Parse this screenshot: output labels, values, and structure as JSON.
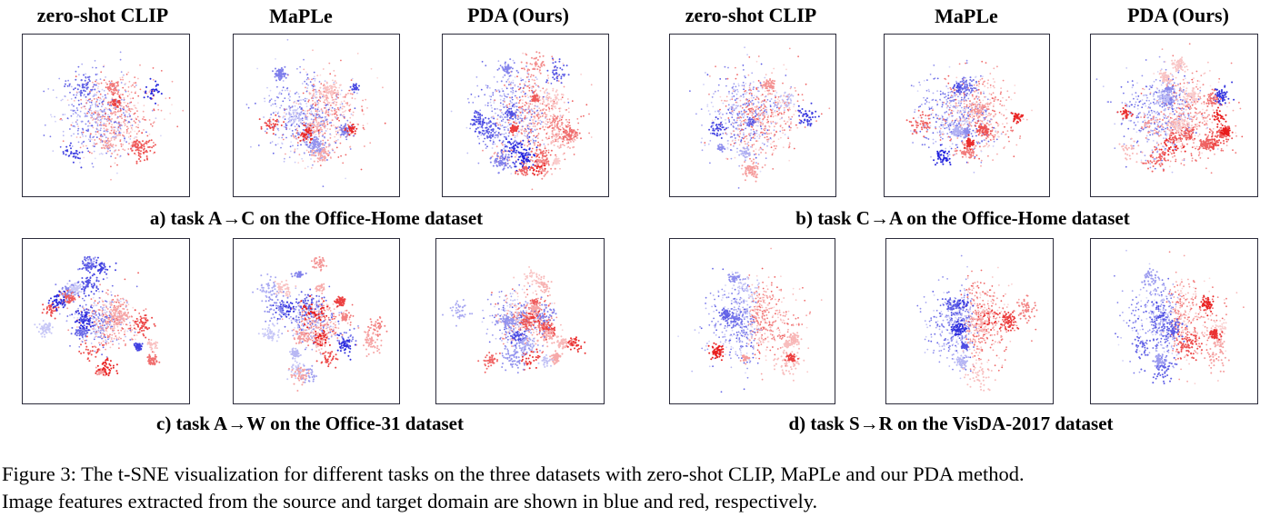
{
  "chart_data": [
    {
      "type": "scatter",
      "subcaption": "a) task A→C on the Office-Home dataset",
      "panels": [
        {
          "title": "zero-shot CLIP",
          "separation": 0.25,
          "spread": 0.85,
          "cluster_count": 8,
          "seed": 11
        },
        {
          "title": "MaPLe",
          "separation": 0.35,
          "spread": 0.85,
          "cluster_count": 12,
          "seed": 23
        },
        {
          "title": "PDA (Ours)",
          "separation": 0.5,
          "spread": 0.9,
          "cluster_count": 22,
          "seed": 37
        }
      ]
    },
    {
      "type": "scatter",
      "subcaption": "b) task C→A on the Office-Home dataset",
      "panels": [
        {
          "title": "zero-shot CLIP",
          "separation": 0.25,
          "spread": 0.85,
          "cluster_count": 8,
          "seed": 41
        },
        {
          "title": "MaPLe",
          "separation": 0.35,
          "spread": 0.85,
          "cluster_count": 12,
          "seed": 53
        },
        {
          "title": "PDA (Ours)",
          "separation": 0.5,
          "spread": 0.9,
          "cluster_count": 22,
          "seed": 67
        }
      ]
    },
    {
      "type": "scatter",
      "subcaption": "c) task A→W on the Office-31 dataset",
      "panels": [
        {
          "title": "",
          "separation": 0.3,
          "spread": 0.55,
          "cluster_count": 22,
          "seed": 71
        },
        {
          "title": "",
          "separation": 0.3,
          "spread": 0.5,
          "cluster_count": 24,
          "seed": 83
        },
        {
          "title": "",
          "separation": 0.35,
          "spread": 0.55,
          "cluster_count": 22,
          "seed": 97
        }
      ]
    },
    {
      "type": "scatter",
      "subcaption": "d) task S→R on the VisDA-2017 dataset",
      "panels": [
        {
          "title": "",
          "separation": 0.9,
          "spread": 0.8,
          "cluster_count": 10,
          "seed": 101
        },
        {
          "title": "",
          "separation": 0.9,
          "spread": 0.8,
          "cluster_count": 10,
          "seed": 113
        },
        {
          "title": "",
          "separation": 0.9,
          "spread": 0.8,
          "cluster_count": 12,
          "seed": 127
        }
      ]
    }
  ],
  "legend": {
    "source_domain_color": "#1a1adb",
    "target_domain_color": "#e81c1c"
  },
  "caption": {
    "line1": "Figure 3: The t-SNE visualization for different tasks on the three datasets with zero-shot CLIP, MaPLe and our PDA method.",
    "line2": "Image features extracted from the source and target domain are shown in blue and red, respectively."
  }
}
